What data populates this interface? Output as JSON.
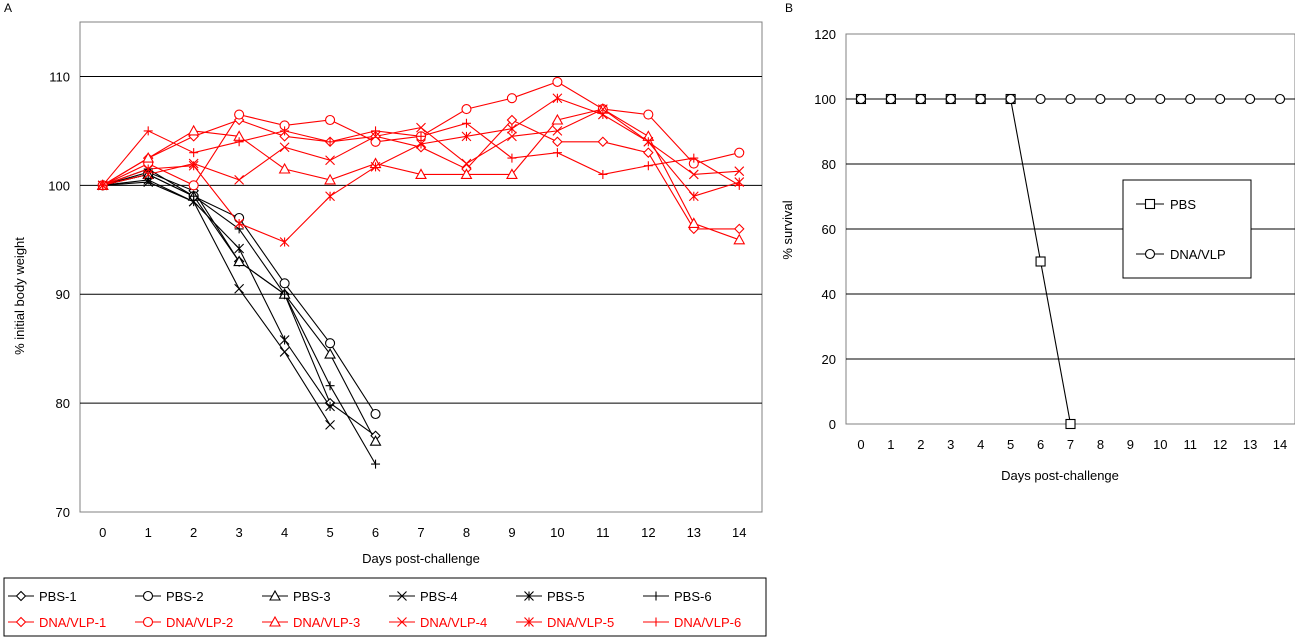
{
  "chart_data": [
    {
      "panel_label": "A",
      "type": "line",
      "xlabel": "Days post-challenge",
      "ylabel": "% initial body weight",
      "ylim": [
        70,
        115
      ],
      "yticks": [
        70,
        80,
        90,
        100,
        110
      ],
      "x_ticks": [
        0,
        1,
        2,
        3,
        4,
        5,
        6,
        7,
        8,
        9,
        10,
        11,
        12,
        13,
        14
      ],
      "grid": true,
      "legend_position": "bottom",
      "colors": {
        "PBS": "#000000",
        "DNA/VLP": "#ff0000"
      },
      "series": [
        {
          "name": "PBS-1",
          "marker": "diamond",
          "color": "#000000",
          "x": [
            0,
            1,
            2,
            3,
            4,
            5,
            6
          ],
          "y": [
            100,
            101.2,
            99.5,
            93,
            90,
            80,
            77
          ]
        },
        {
          "name": "PBS-2",
          "marker": "circle",
          "color": "#000000",
          "x": [
            0,
            1,
            2,
            3,
            4,
            5,
            6
          ],
          "y": [
            100,
            101,
            99,
            97,
            91,
            85.5,
            79
          ]
        },
        {
          "name": "PBS-3",
          "marker": "triangle",
          "color": "#000000",
          "x": [
            0,
            1,
            2,
            3,
            4,
            5,
            6
          ],
          "y": [
            100,
            101,
            99,
            93,
            90,
            84.5,
            76.5
          ]
        },
        {
          "name": "PBS-4",
          "marker": "x",
          "color": "#000000",
          "x": [
            0,
            1,
            2,
            3,
            4,
            5
          ],
          "y": [
            100,
            100.3,
            98.5,
            90.5,
            84.7,
            78
          ]
        },
        {
          "name": "PBS-5",
          "marker": "asterisk",
          "color": "#000000",
          "x": [
            0,
            1,
            2,
            3,
            4,
            5
          ],
          "y": [
            100,
            100.5,
            98.5,
            94.2,
            85.8,
            79.7
          ]
        },
        {
          "name": "PBS-6",
          "marker": "plus",
          "color": "#000000",
          "x": [
            0,
            1,
            2,
            3,
            4,
            5,
            6
          ],
          "y": [
            100,
            101.5,
            99,
            96,
            90,
            81.6,
            74.4
          ]
        },
        {
          "name": "DNA/VLP-1",
          "marker": "diamond",
          "color": "#ff0000",
          "x": [
            0,
            1,
            2,
            3,
            4,
            5,
            6,
            7,
            8,
            9,
            10,
            11,
            12,
            13,
            14
          ],
          "y": [
            100,
            102.5,
            104.5,
            106,
            104.5,
            104,
            104.5,
            103.5,
            101.5,
            106,
            104,
            104,
            103,
            96,
            96
          ]
        },
        {
          "name": "DNA/VLP-2",
          "marker": "circle",
          "color": "#ff0000",
          "x": [
            0,
            1,
            2,
            3,
            4,
            5,
            6,
            7,
            8,
            9,
            10,
            11,
            12,
            13,
            14
          ],
          "y": [
            100,
            102,
            100,
            106.5,
            105.5,
            106,
            104,
            104.5,
            107,
            108,
            109.5,
            107,
            106.5,
            102,
            103
          ]
        },
        {
          "name": "DNA/VLP-3",
          "marker": "triangle",
          "color": "#ff0000",
          "x": [
            0,
            1,
            2,
            3,
            4,
            5,
            6,
            7,
            8,
            9,
            10,
            11,
            12,
            13,
            14
          ],
          "y": [
            100,
            102.5,
            105,
            104.5,
            101.5,
            100.5,
            102,
            101,
            101,
            101,
            106,
            107,
            104.5,
            96.5,
            95
          ]
        },
        {
          "name": "DNA/VLP-4",
          "marker": "x",
          "color": "#ff0000",
          "x": [
            0,
            1,
            2,
            3,
            4,
            5,
            6,
            7,
            8,
            9,
            10,
            11,
            12,
            13,
            14
          ],
          "y": [
            100,
            101,
            102,
            100.5,
            103.5,
            102.3,
            104.5,
            105.3,
            102,
            104.5,
            105,
            107,
            104,
            101,
            101.3
          ]
        },
        {
          "name": "DNA/VLP-5",
          "marker": "asterisk",
          "color": "#ff0000",
          "x": [
            0,
            1,
            2,
            3,
            4,
            5,
            6,
            7,
            8,
            9,
            10,
            11,
            12,
            13,
            14
          ],
          "y": [
            100,
            101.5,
            101.8,
            96.5,
            94.8,
            99,
            101.7,
            103.8,
            104.5,
            105.2,
            108,
            106.5,
            104,
            99,
            100.3
          ]
        },
        {
          "name": "DNA/VLP-6",
          "marker": "plus",
          "color": "#ff0000",
          "x": [
            0,
            1,
            2,
            3,
            4,
            5,
            6,
            7,
            8,
            9,
            10,
            11,
            12,
            13,
            14
          ],
          "y": [
            100,
            105,
            103,
            104,
            105,
            104,
            105,
            104.5,
            105.7,
            102.5,
            103,
            101,
            101.8,
            102.5,
            100
          ]
        }
      ]
    },
    {
      "panel_label": "B",
      "type": "line",
      "xlabel": "Days post-challenge",
      "ylabel": "% survival",
      "ylim": [
        0,
        120
      ],
      "yticks": [
        0,
        20,
        40,
        60,
        80,
        100,
        120
      ],
      "x_ticks": [
        0,
        1,
        2,
        3,
        4,
        5,
        6,
        7,
        8,
        9,
        10,
        11,
        12,
        13,
        14
      ],
      "grid": true,
      "legend_position": "right",
      "series": [
        {
          "name": "PBS",
          "marker": "square",
          "color": "#000000",
          "x": [
            0,
            1,
            2,
            3,
            4,
            5,
            6,
            7
          ],
          "y": [
            100,
            100,
            100,
            100,
            100,
            100,
            50,
            0
          ]
        },
        {
          "name": "DNA/VLP",
          "marker": "circle",
          "color": "#000000",
          "x": [
            0,
            1,
            2,
            3,
            4,
            5,
            6,
            7,
            8,
            9,
            10,
            11,
            12,
            13,
            14
          ],
          "y": [
            100,
            100,
            100,
            100,
            100,
            100,
            100,
            100,
            100,
            100,
            100,
            100,
            100,
            100,
            100
          ]
        }
      ]
    }
  ]
}
